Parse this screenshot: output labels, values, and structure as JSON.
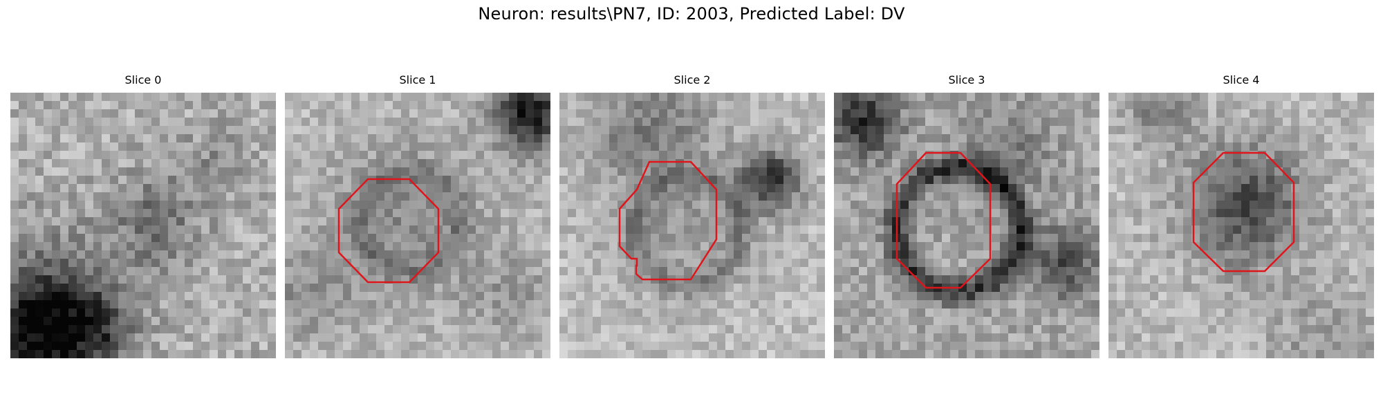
{
  "figure": {
    "title": "Neuron: results\\PN7, ID: 2003, Predicted Label: DV"
  },
  "contour_color": "#e0141b",
  "panels": [
    {
      "title": "Slice 0",
      "has_contour": false
    },
    {
      "title": "Slice 1",
      "has_contour": true
    },
    {
      "title": "Slice 2",
      "has_contour": true
    },
    {
      "title": "Slice 3",
      "has_contour": true
    },
    {
      "title": "Slice 4",
      "has_contour": true
    }
  ]
}
